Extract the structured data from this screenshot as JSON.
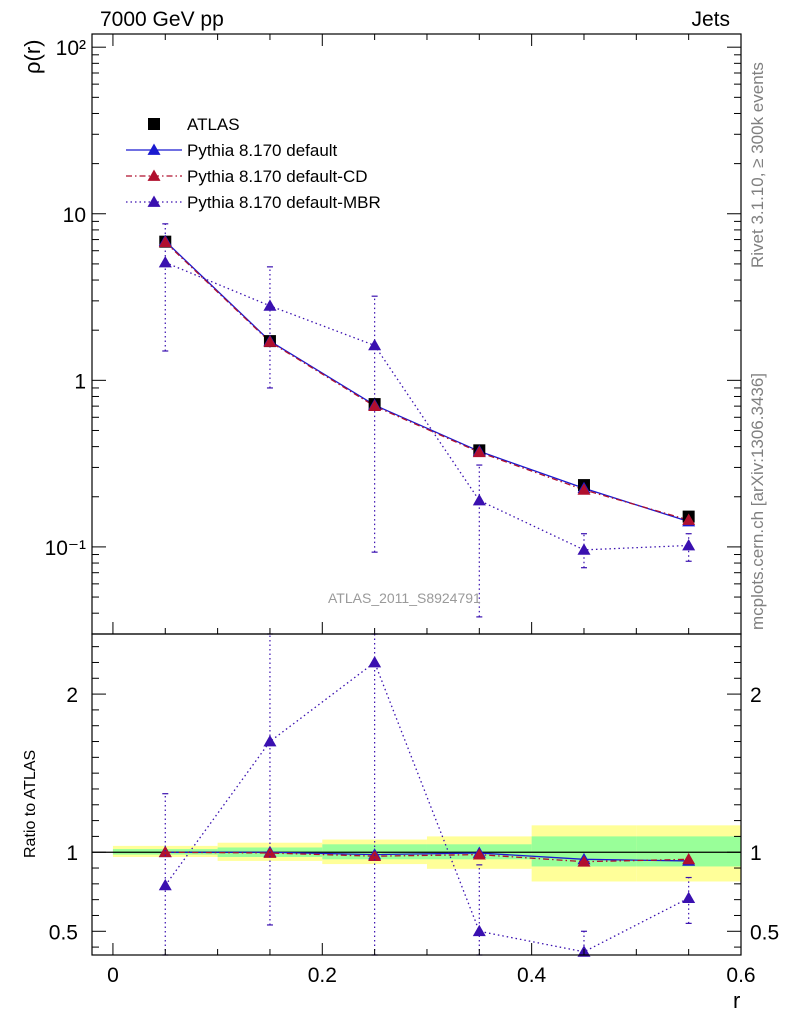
{
  "header": {
    "energy_label": "7000 GeV pp",
    "process_label": "Jets",
    "watermark": "ATLAS_2011_S8924791",
    "side_rivet": "Rivet 3.1.10, ≥ 300k events",
    "side_mcplots": "mcplots.cern.ch [arXiv:1306.3436]"
  },
  "colors": {
    "data": "#000000",
    "default": "#1a1ad0",
    "cd": "#b0102e",
    "mbr": "#3a10b0",
    "band_inner": "#99ff99",
    "band_outer": "#ffff99"
  },
  "chart_data": [
    {
      "type": "line",
      "panel": "main",
      "ylabel": "ρ(r)",
      "yscale": "log",
      "ylim": [
        0.03,
        120
      ],
      "xlim": [
        -0.02,
        0.6
      ],
      "y_ticklabels": [
        "10⁻¹",
        "1",
        "10",
        "10²"
      ],
      "legend_position": "top-left",
      "x": [
        0.05,
        0.15,
        0.25,
        0.35,
        0.45,
        0.55
      ],
      "series": [
        {
          "name": "ATLAS",
          "marker": "square",
          "values": [
            6.8,
            1.72,
            0.72,
            0.38,
            0.235,
            0.152
          ]
        },
        {
          "name": "Pythia 8.170 default",
          "marker": "triangle",
          "line": "solid",
          "values": [
            6.85,
            1.72,
            0.71,
            0.375,
            0.225,
            0.142
          ]
        },
        {
          "name": "Pythia 8.170 default-CD",
          "marker": "triangle",
          "line": "dashdot",
          "values": [
            6.75,
            1.7,
            0.7,
            0.37,
            0.22,
            0.145
          ]
        },
        {
          "name": "Pythia 8.170 default-MBR",
          "marker": "triangle",
          "line": "dotted",
          "values": [
            5.1,
            2.8,
            1.62,
            0.19,
            0.096,
            0.102
          ],
          "err_low": [
            1.5,
            0.9,
            0.093,
            0.038,
            0.075,
            0.082
          ],
          "err_high": [
            8.7,
            4.8,
            3.2,
            0.31,
            0.12,
            0.12
          ]
        }
      ]
    },
    {
      "type": "line",
      "panel": "ratio",
      "xlabel": "r",
      "ylabel": "Ratio to ATLAS",
      "ylim": [
        0.35,
        2.38
      ],
      "xlim": [
        -0.02,
        0.6
      ],
      "x_ticklabels": [
        "0",
        "0.2",
        "0.4",
        "0.6"
      ],
      "y_ticklabels": [
        "0.5",
        "1",
        "2"
      ],
      "x": [
        0.05,
        0.15,
        0.25,
        0.35,
        0.45,
        0.55
      ],
      "band_edges": [
        0.0,
        0.1,
        0.2,
        0.3,
        0.4,
        0.5,
        0.6
      ],
      "band_inner": [
        [
          0.985,
          1.02
        ],
        [
          0.97,
          1.03
        ],
        [
          0.955,
          1.05
        ],
        [
          0.955,
          1.05
        ],
        [
          0.91,
          1.1
        ],
        [
          0.91,
          1.1
        ]
      ],
      "band_outer": [
        [
          0.97,
          1.04
        ],
        [
          0.945,
          1.06
        ],
        [
          0.925,
          1.08
        ],
        [
          0.895,
          1.1
        ],
        [
          0.815,
          1.17
        ],
        [
          0.815,
          1.17
        ]
      ],
      "series": [
        {
          "name": "Pythia 8.170 default",
          "values": [
            1.0,
            1.0,
            0.985,
            0.995,
            0.955,
            0.945
          ]
        },
        {
          "name": "Pythia 8.170 default-CD",
          "values": [
            1.0,
            0.995,
            0.975,
            0.985,
            0.94,
            0.955
          ]
        },
        {
          "name": "Pythia 8.170 default-MBR",
          "values": [
            0.79,
            1.7,
            2.2,
            0.5,
            0.37,
            0.71
          ],
          "err_low": [
            0.35,
            0.54,
            0.35,
            0.35,
            0.35,
            0.55
          ],
          "err_high": [
            1.37,
            2.38,
            2.38,
            0.92,
            0.5,
            0.84
          ]
        }
      ]
    }
  ]
}
